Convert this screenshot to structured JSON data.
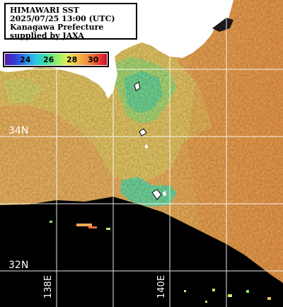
{
  "title": {
    "line1": "HIMAWARI SST",
    "line2": "2025/07/25 13:00 (UTC)",
    "line3": "Kanagawa Prefecture",
    "line4": "supplied by JAXA"
  },
  "colorbar": {
    "ticks": [
      "24",
      "26",
      "28",
      "30"
    ]
  },
  "graticule": {
    "lat_labels": [
      "34N",
      "32N"
    ],
    "lon_labels": [
      "138E",
      "140E"
    ]
  }
}
